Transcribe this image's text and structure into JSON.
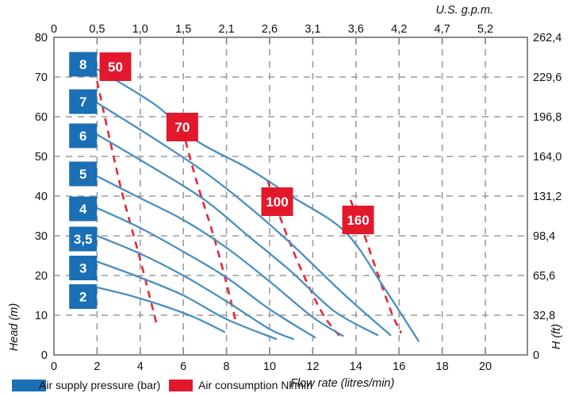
{
  "chart_data": {
    "type": "line",
    "xlabel": "Flow rate (litres/min)",
    "ylabel": "Head (m)",
    "top_xlabel": "U.S. g.p.m.",
    "right_ylabel": "H (ft)",
    "xlim": [
      0,
      21.9
    ],
    "ylim": [
      0,
      80
    ],
    "grid": "dashed",
    "x_axis": {
      "ticks": [
        0,
        2,
        4,
        6,
        8,
        10,
        12,
        14,
        16,
        18,
        20
      ],
      "tick_labels": [
        "0",
        "2",
        "4",
        "6",
        "8",
        "10",
        "12",
        "14",
        "16",
        "18",
        "20"
      ]
    },
    "top_axis": {
      "tick_labels": [
        "0",
        "0,5",
        "1,0",
        "1,5",
        "2,1",
        "2,6",
        "3,1",
        "3,6",
        "4,2",
        "4,7",
        "5,2"
      ]
    },
    "y_axis": {
      "ticks": [
        0,
        10,
        20,
        30,
        40,
        50,
        60,
        70,
        80
      ],
      "tick_labels": [
        "0",
        "10",
        "20",
        "30",
        "40",
        "50",
        "60",
        "70",
        "80"
      ]
    },
    "right_axis": {
      "tick_labels": [
        "0",
        "32,8",
        "65,6",
        "98,4",
        "131,2",
        "164,0",
        "196,8",
        "229,6",
        "262,4"
      ]
    },
    "pressure_curves": [
      {
        "label": "8",
        "box_center": [
          1.35,
          73.2
        ],
        "points": [
          [
            2,
            72
          ],
          [
            4.7,
            63
          ],
          [
            6.6,
            54
          ],
          [
            9,
            47
          ],
          [
            11,
            40
          ],
          [
            13.5,
            31
          ],
          [
            15.3,
            17
          ],
          [
            16.9,
            3.5
          ]
        ]
      },
      {
        "label": "7",
        "box_center": [
          1.35,
          63.8
        ],
        "points": [
          [
            2,
            63.5
          ],
          [
            4.5,
            55
          ],
          [
            7,
            46
          ],
          [
            9,
            37.5
          ],
          [
            11,
            28
          ],
          [
            13.5,
            15
          ],
          [
            15.6,
            5
          ]
        ]
      },
      {
        "label": "6",
        "box_center": [
          1.35,
          55.2
        ],
        "points": [
          [
            2,
            55.5
          ],
          [
            4.5,
            47.5
          ],
          [
            7,
            39
          ],
          [
            9,
            30
          ],
          [
            11,
            21
          ],
          [
            13,
            11
          ],
          [
            15,
            5
          ]
        ]
      },
      {
        "label": "5",
        "box_center": [
          1.35,
          45.6
        ],
        "points": [
          [
            2,
            45
          ],
          [
            4,
            39.5
          ],
          [
            6,
            34
          ],
          [
            8,
            27
          ],
          [
            10,
            18.5
          ],
          [
            12,
            9.5
          ],
          [
            13.4,
            4.8
          ]
        ]
      },
      {
        "label": "4",
        "box_center": [
          1.35,
          36.8
        ],
        "points": [
          [
            2,
            37
          ],
          [
            4,
            32
          ],
          [
            6,
            26
          ],
          [
            8,
            19.5
          ],
          [
            10,
            11.5
          ],
          [
            12.1,
            4.4
          ]
        ]
      },
      {
        "label": "3,5",
        "box_center": [
          1.35,
          29.2
        ],
        "points": [
          [
            2,
            30
          ],
          [
            4,
            25.5
          ],
          [
            6,
            20
          ],
          [
            8,
            13.5
          ],
          [
            10,
            6.5
          ],
          [
            11.1,
            4
          ]
        ]
      },
      {
        "label": "3",
        "box_center": [
          1.35,
          21.9
        ],
        "points": [
          [
            2,
            23.5
          ],
          [
            4,
            19.5
          ],
          [
            6,
            15
          ],
          [
            8,
            9
          ],
          [
            10.3,
            4
          ]
        ]
      },
      {
        "label": "2",
        "box_center": [
          1.35,
          14.7
        ],
        "points": [
          [
            2,
            17
          ],
          [
            3.5,
            15
          ],
          [
            5,
            12.5
          ],
          [
            6.5,
            9.5
          ],
          [
            7.9,
            5.8
          ]
        ]
      }
    ],
    "consumption_lines": [
      {
        "label": "50",
        "box_center": [
          2.85,
          72.6
        ],
        "points": [
          [
            2.0,
            69
          ],
          [
            2.6,
            54
          ],
          [
            3.2,
            40
          ],
          [
            4.0,
            24
          ],
          [
            4.75,
            8
          ]
        ]
      },
      {
        "label": "70",
        "box_center": [
          5.95,
          57.4
        ],
        "points": [
          [
            5.95,
            57
          ],
          [
            6.6,
            44
          ],
          [
            7.4,
            30
          ],
          [
            8.0,
            18
          ],
          [
            8.45,
            8
          ]
        ]
      },
      {
        "label": "100",
        "box_center": [
          10.35,
          38.6
        ],
        "points": [
          [
            9.9,
            44
          ],
          [
            10.6,
            33
          ],
          [
            11.5,
            21
          ],
          [
            12.5,
            10
          ],
          [
            13.4,
            3.8
          ]
        ]
      },
      {
        "label": "160",
        "box_center": [
          14.1,
          34.0
        ],
        "points": [
          [
            13.75,
            39
          ],
          [
            14.4,
            30
          ],
          [
            15.1,
            19
          ],
          [
            15.7,
            10
          ],
          [
            16.1,
            5.5
          ]
        ]
      }
    ],
    "colors": {
      "pressure_box": "#1b6fb5",
      "consumption_box": "#e2182c",
      "pressure_curve": "#4a8fc2",
      "consumption_line": "#e52736",
      "grid": "#9c9c9c",
      "frame": "#8a8a8a",
      "text": "#111111"
    }
  },
  "legend": {
    "pressure_label": "Air supply pressure (bar)",
    "consumption_label": "Air consumption Nl/min"
  }
}
